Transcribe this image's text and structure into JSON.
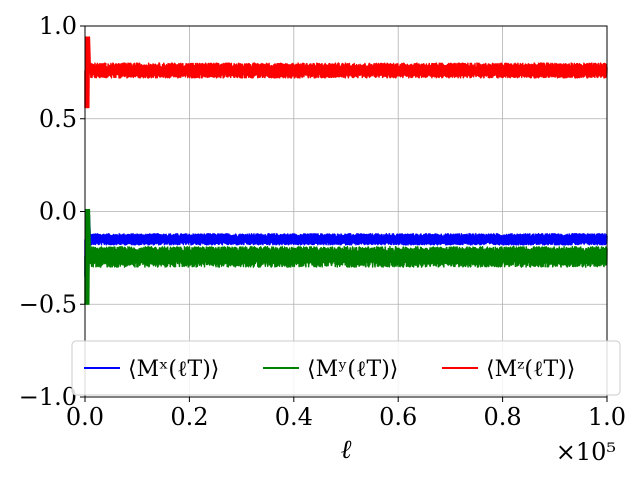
{
  "chart_data": {
    "type": "line",
    "xlabel": "ℓ",
    "x_offset_label": "×10⁵",
    "xlim": [
      0.0,
      1.0
    ],
    "ylim": [
      -1.0,
      1.0
    ],
    "x_ticks": [
      "0.0",
      "0.2",
      "0.4",
      "0.6",
      "0.8",
      "1.0"
    ],
    "y_ticks": [
      "−1.0",
      "−0.5",
      "0.0",
      "0.5",
      "1.0"
    ],
    "grid": true,
    "legend_position": "lower-center",
    "series": [
      {
        "name": "⟨Mˣ(ℓT)⟩",
        "color": "#0000ff",
        "mean": -0.15,
        "band": [
          -0.18,
          -0.12
        ],
        "initial_range": [
          -0.35,
          -0.02
        ]
      },
      {
        "name": "⟨Mʸ(ℓT)⟩",
        "color": "#008000",
        "mean": -0.24,
        "band": [
          -0.3,
          -0.19
        ],
        "initial_range": [
          -0.5,
          0.01
        ]
      },
      {
        "name": "⟨Mᶻ(ℓT)⟩",
        "color": "#ff0000",
        "mean": 0.76,
        "band": [
          0.72,
          0.8
        ],
        "initial_range": [
          0.56,
          0.94
        ]
      }
    ]
  }
}
